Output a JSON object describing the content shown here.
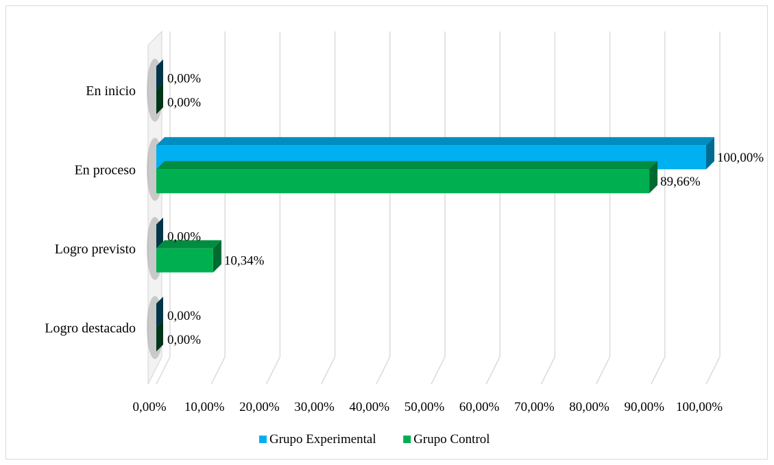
{
  "chart_data": {
    "type": "bar",
    "orientation": "horizontal",
    "style": "3d-clustered",
    "categories": [
      "En inicio",
      "En proceso",
      "Logro previsto",
      "Logro destacado"
    ],
    "series": [
      {
        "name": "Grupo Experimental",
        "values": [
          0.0,
          100.0,
          0.0,
          0.0
        ],
        "labels": [
          "0,00%",
          "100,00%",
          "0,00%",
          "0,00%"
        ]
      },
      {
        "name": "Grupo Control",
        "values": [
          0.0,
          89.66,
          10.34,
          0.0
        ],
        "labels": [
          "0,00%",
          "89,66%",
          "10,34%",
          "0,00%"
        ]
      }
    ],
    "xlim": [
      0,
      100
    ],
    "xticks": [
      "0,00%",
      "10,00%",
      "20,00%",
      "30,00%",
      "40,00%",
      "50,00%",
      "60,00%",
      "70,00%",
      "80,00%",
      "90,00%",
      "100,00%"
    ],
    "grid": true,
    "legend": "bottom",
    "colors": {
      "Grupo Experimental": "#00b0f0",
      "Grupo Control": "#00b050"
    }
  }
}
